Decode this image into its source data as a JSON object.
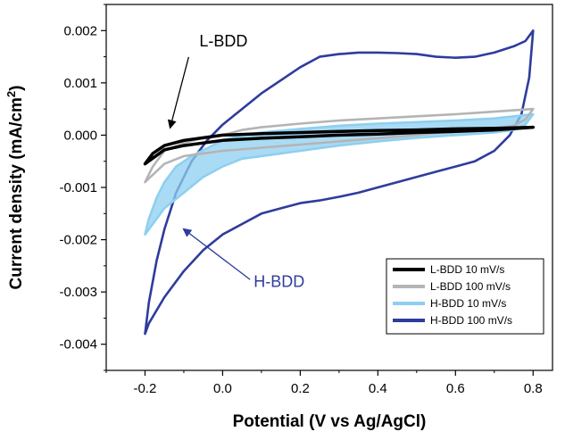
{
  "chart_data": {
    "type": "line",
    "title": "",
    "xlabel": "Potential (V vs Ag/AgCl)",
    "ylabel_main": "Current density (mA/cm",
    "ylabel_sup": "2",
    "ylabel_close": ")",
    "xlim": [
      -0.3,
      0.85
    ],
    "ylim": [
      -0.0045,
      0.0025
    ],
    "xticks": [
      {
        "v": -0.2,
        "label": "-0.2"
      },
      {
        "v": 0.0,
        "label": "0.0"
      },
      {
        "v": 0.2,
        "label": "0.2"
      },
      {
        "v": 0.4,
        "label": "0.4"
      },
      {
        "v": 0.6,
        "label": "0.6"
      },
      {
        "v": 0.8,
        "label": "0.8"
      }
    ],
    "yticks": [
      {
        "v": 0.002,
        "label": "0.002"
      },
      {
        "v": 0.001,
        "label": "0.001"
      },
      {
        "v": 0.0,
        "label": "0.000"
      },
      {
        "v": -0.001,
        "label": "-0.001"
      },
      {
        "v": -0.002,
        "label": "-0.002"
      },
      {
        "v": -0.003,
        "label": "-0.003"
      },
      {
        "v": -0.004,
        "label": "-0.004"
      }
    ],
    "grid": false,
    "legend_position": "bottom-right",
    "series": [
      {
        "name": "H-BDD 100 mV/s",
        "color": "#2e3c9c",
        "fill": false,
        "forward": [
          [
            -0.2,
            -0.0038
          ],
          [
            -0.19,
            -0.0032
          ],
          [
            -0.17,
            -0.0024
          ],
          [
            -0.15,
            -0.0018
          ],
          [
            -0.12,
            -0.0011
          ],
          [
            -0.08,
            -0.0005
          ],
          [
            -0.04,
            -0.0001
          ],
          [
            0.0,
            0.0002
          ],
          [
            0.05,
            0.0005
          ],
          [
            0.1,
            0.0008
          ],
          [
            0.15,
            0.00105
          ],
          [
            0.2,
            0.0013
          ],
          [
            0.25,
            0.0015
          ],
          [
            0.3,
            0.00155
          ],
          [
            0.35,
            0.00158
          ],
          [
            0.4,
            0.00158
          ],
          [
            0.45,
            0.00157
          ],
          [
            0.5,
            0.00155
          ],
          [
            0.55,
            0.0015
          ],
          [
            0.6,
            0.00148
          ],
          [
            0.65,
            0.0015
          ],
          [
            0.7,
            0.00158
          ],
          [
            0.75,
            0.0017
          ],
          [
            0.78,
            0.0018
          ],
          [
            0.8,
            0.002
          ]
        ],
        "reverse": [
          [
            0.8,
            0.002
          ],
          [
            0.79,
            0.0011
          ],
          [
            0.77,
            0.0004
          ],
          [
            0.74,
            0.0
          ],
          [
            0.7,
            -0.0003
          ],
          [
            0.65,
            -0.0005
          ],
          [
            0.6,
            -0.0006
          ],
          [
            0.55,
            -0.0007
          ],
          [
            0.5,
            -0.0008
          ],
          [
            0.45,
            -0.0009
          ],
          [
            0.4,
            -0.001
          ],
          [
            0.35,
            -0.0011
          ],
          [
            0.3,
            -0.00118
          ],
          [
            0.25,
            -0.00125
          ],
          [
            0.2,
            -0.0013
          ],
          [
            0.15,
            -0.0014
          ],
          [
            0.1,
            -0.0015
          ],
          [
            0.05,
            -0.0017
          ],
          [
            0.0,
            -0.0019
          ],
          [
            -0.05,
            -0.0022
          ],
          [
            -0.1,
            -0.0026
          ],
          [
            -0.15,
            -0.0031
          ],
          [
            -0.19,
            -0.0036
          ],
          [
            -0.2,
            -0.0038
          ]
        ]
      },
      {
        "name": "H-BDD 10 mV/s",
        "color": "#8ecff0",
        "fill": true,
        "forward": [
          [
            -0.2,
            -0.0019
          ],
          [
            -0.19,
            -0.0016
          ],
          [
            -0.17,
            -0.0012
          ],
          [
            -0.15,
            -0.0009
          ],
          [
            -0.12,
            -0.0006
          ],
          [
            -0.08,
            -0.0004
          ],
          [
            -0.04,
            -0.00025
          ],
          [
            0.0,
            -0.0001
          ],
          [
            0.05,
            0.0
          ],
          [
            0.1,
            5e-05
          ],
          [
            0.2,
            0.00012
          ],
          [
            0.3,
            0.00018
          ],
          [
            0.4,
            0.00022
          ],
          [
            0.5,
            0.00025
          ],
          [
            0.6,
            0.00028
          ],
          [
            0.7,
            0.00032
          ],
          [
            0.8,
            0.0004
          ]
        ],
        "reverse": [
          [
            0.8,
            0.0004
          ],
          [
            0.78,
            0.0002
          ],
          [
            0.75,
            0.0001
          ],
          [
            0.7,
            5e-05
          ],
          [
            0.6,
            0.0
          ],
          [
            0.5,
            -5e-05
          ],
          [
            0.4,
            -0.00012
          ],
          [
            0.3,
            -0.0002
          ],
          [
            0.2,
            -0.0003
          ],
          [
            0.1,
            -0.0004
          ],
          [
            0.05,
            -0.00045
          ],
          [
            0.0,
            -0.0006
          ],
          [
            -0.05,
            -0.0008
          ],
          [
            -0.1,
            -0.0011
          ],
          [
            -0.15,
            -0.0014
          ],
          [
            -0.2,
            -0.0019
          ]
        ]
      },
      {
        "name": "L-BDD 100 mV/s",
        "color": "#b4b4b4",
        "fill": false,
        "forward": [
          [
            -0.2,
            -0.0009
          ],
          [
            -0.18,
            -0.0006
          ],
          [
            -0.15,
            -0.0003
          ],
          [
            -0.1,
            -0.00015
          ],
          [
            -0.05,
            -5e-05
          ],
          [
            0.0,
            0.0
          ],
          [
            0.05,
            0.0001
          ],
          [
            0.1,
            0.00015
          ],
          [
            0.2,
            0.00022
          ],
          [
            0.3,
            0.00028
          ],
          [
            0.4,
            0.00032
          ],
          [
            0.5,
            0.00036
          ],
          [
            0.6,
            0.0004
          ],
          [
            0.7,
            0.00045
          ],
          [
            0.8,
            0.0005
          ]
        ],
        "reverse": [
          [
            0.8,
            0.0005
          ],
          [
            0.78,
            0.0003
          ],
          [
            0.75,
            0.00018
          ],
          [
            0.7,
            0.00012
          ],
          [
            0.6,
            8e-05
          ],
          [
            0.5,
            0.0
          ],
          [
            0.4,
            -6e-05
          ],
          [
            0.3,
            -0.00012
          ],
          [
            0.2,
            -0.00018
          ],
          [
            0.1,
            -0.00024
          ],
          [
            0.0,
            -0.0003
          ],
          [
            -0.05,
            -0.00035
          ],
          [
            -0.1,
            -0.0004
          ],
          [
            -0.15,
            -0.00055
          ],
          [
            -0.2,
            -0.0009
          ]
        ]
      },
      {
        "name": "L-BDD 10 mV/s",
        "color": "#000000",
        "fill": false,
        "forward": [
          [
            -0.2,
            -0.00055
          ],
          [
            -0.18,
            -0.00035
          ],
          [
            -0.15,
            -0.0002
          ],
          [
            -0.1,
            -0.0001
          ],
          [
            -0.05,
            -5e-05
          ],
          [
            0.0,
            0.0
          ],
          [
            0.1,
            3e-05
          ],
          [
            0.2,
            5e-05
          ],
          [
            0.3,
            7e-05
          ],
          [
            0.4,
            9e-05
          ],
          [
            0.5,
            0.0001
          ],
          [
            0.6,
            0.00012
          ],
          [
            0.7,
            0.00013
          ],
          [
            0.8,
            0.00015
          ]
        ],
        "reverse": [
          [
            0.8,
            0.00015
          ],
          [
            0.7,
            0.0001
          ],
          [
            0.6,
            7e-05
          ],
          [
            0.5,
            5e-05
          ],
          [
            0.4,
            2e-05
          ],
          [
            0.3,
            0.0
          ],
          [
            0.2,
            -3e-05
          ],
          [
            0.1,
            -6e-05
          ],
          [
            0.0,
            -0.0001
          ],
          [
            -0.05,
            -0.00015
          ],
          [
            -0.1,
            -0.0002
          ],
          [
            -0.15,
            -0.00028
          ],
          [
            -0.2,
            -0.00055
          ]
        ]
      }
    ],
    "legend": [
      {
        "label": "L-BDD 10 mV/s",
        "color": "#000000"
      },
      {
        "label": "L-BDD 100 mV/s",
        "color": "#b4b4b4"
      },
      {
        "label": "H-BDD 10 mV/s",
        "color": "#8ecff0"
      },
      {
        "label": "H-BDD 100 mV/s",
        "color": "#2e3c9c"
      }
    ],
    "annotations": [
      {
        "text": "L-BDD",
        "color": "#000000",
        "arrow_from": [
          -0.06,
          0.0017
        ],
        "arrow_to": [
          -0.135,
          0.00015
        ]
      },
      {
        "text": "H-BDD",
        "color": "#2e3c9c",
        "arrow_from": [
          0.08,
          -0.0029
        ],
        "arrow_to": [
          -0.1,
          -0.0018
        ]
      }
    ]
  }
}
